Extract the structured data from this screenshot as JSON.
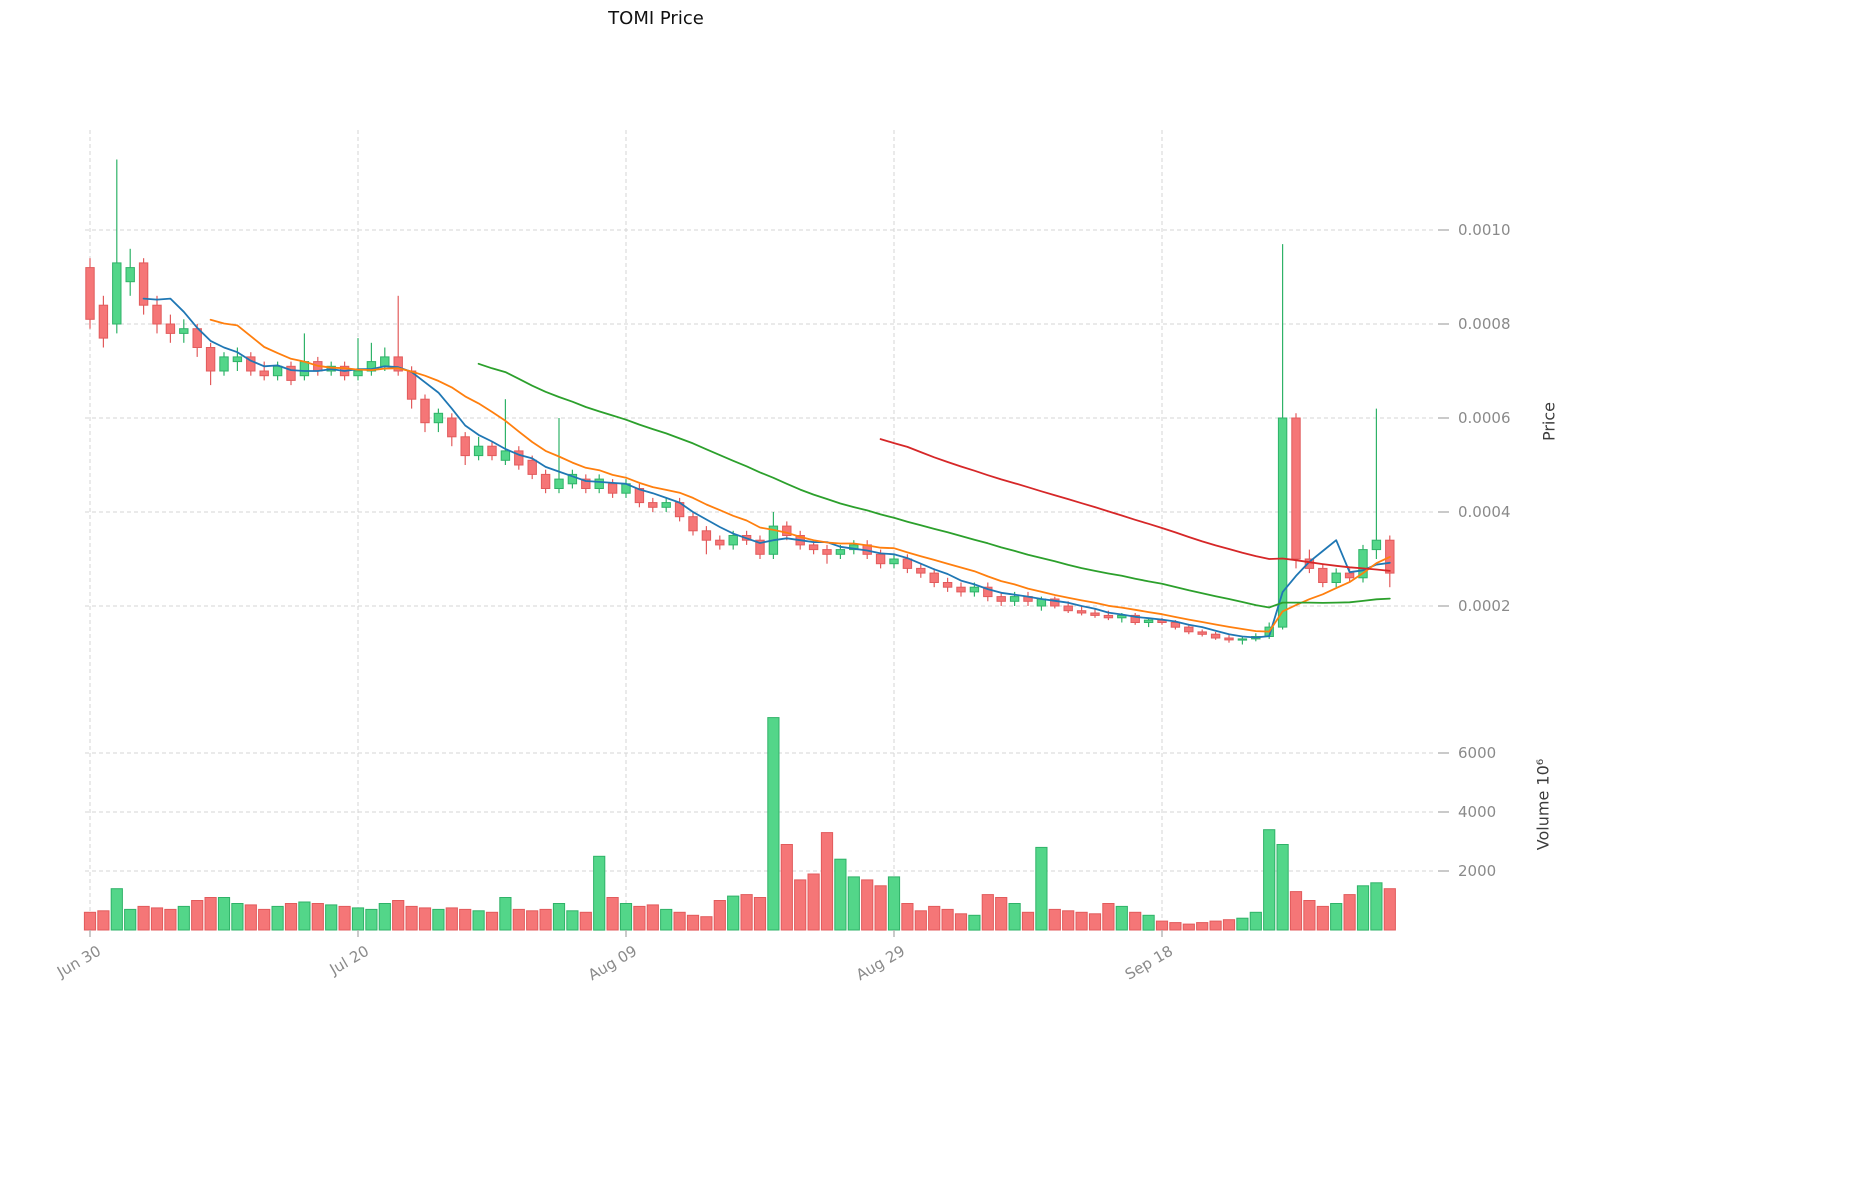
{
  "chart_data": {
    "type": "candlestick+volume",
    "title": "TOMI Price",
    "ylabel": "Price",
    "volume_label": "Volume 10⁶",
    "legend": "none",
    "grid": "dashed",
    "price_axis_side": "right",
    "price_ticks": [
      {
        "value": 0.0002,
        "label": "0.0002"
      },
      {
        "value": 0.0004,
        "label": "0.0004"
      },
      {
        "value": 0.0006,
        "label": "0.0006"
      },
      {
        "value": 0.0008,
        "label": "0.0008"
      },
      {
        "value": 0.001,
        "label": "0.0010"
      }
    ],
    "volume_ticks": [
      {
        "value": 2000,
        "label": "2000"
      },
      {
        "value": 4000,
        "label": "4000"
      },
      {
        "value": 6000,
        "label": "6000"
      }
    ],
    "x_ticks": [
      {
        "index": 0,
        "label": "Jun 30"
      },
      {
        "index": 20,
        "label": "Jul 20"
      },
      {
        "index": 40,
        "label": "Aug 09"
      },
      {
        "index": 60,
        "label": "Aug 29"
      },
      {
        "index": 80,
        "label": "Sep 18"
      }
    ],
    "moving_averages": [
      {
        "window": 5,
        "color": "#1f77b4"
      },
      {
        "window": 10,
        "color": "#ff7f0e"
      },
      {
        "window": 30,
        "color": "#2ca02c"
      },
      {
        "window": 60,
        "color": "#d62728"
      }
    ],
    "colors": {
      "up": "#53d689",
      "down": "#f57677",
      "up_edge": "#2fb268",
      "down_edge": "#e25b5c",
      "grid": "#d5d5d5"
    },
    "ohlc": [
      [
        0.00092,
        0.00094,
        0.00079,
        0.00081
      ],
      [
        0.00084,
        0.00086,
        0.00075,
        0.00077
      ],
      [
        0.0008,
        0.00115,
        0.00078,
        0.00093
      ],
      [
        0.00089,
        0.00096,
        0.00086,
        0.00092
      ],
      [
        0.00093,
        0.00094,
        0.00082,
        0.00084
      ],
      [
        0.00084,
        0.00086,
        0.00078,
        0.0008
      ],
      [
        0.0008,
        0.00082,
        0.00076,
        0.00078
      ],
      [
        0.00078,
        0.00081,
        0.00076,
        0.00079
      ],
      [
        0.00079,
        0.0008,
        0.00073,
        0.00075
      ],
      [
        0.00075,
        0.00076,
        0.00067,
        0.0007
      ],
      [
        0.0007,
        0.00074,
        0.00069,
        0.00073
      ],
      [
        0.00072,
        0.00075,
        0.0007,
        0.00073
      ],
      [
        0.00073,
        0.00074,
        0.00069,
        0.0007
      ],
      [
        0.0007,
        0.00072,
        0.00068,
        0.00069
      ],
      [
        0.00069,
        0.00072,
        0.00068,
        0.00071
      ],
      [
        0.00071,
        0.00072,
        0.00067,
        0.00068
      ],
      [
        0.00069,
        0.00078,
        0.00068,
        0.00072
      ],
      [
        0.00072,
        0.00073,
        0.00069,
        0.0007
      ],
      [
        0.0007,
        0.00072,
        0.00069,
        0.00071
      ],
      [
        0.00071,
        0.00072,
        0.00068,
        0.00069
      ],
      [
        0.00069,
        0.00077,
        0.00068,
        0.0007
      ],
      [
        0.0007,
        0.00076,
        0.00069,
        0.00072
      ],
      [
        0.00071,
        0.00075,
        0.0007,
        0.00073
      ],
      [
        0.00073,
        0.00086,
        0.00069,
        0.0007
      ],
      [
        0.0007,
        0.00071,
        0.00062,
        0.00064
      ],
      [
        0.00064,
        0.00065,
        0.00057,
        0.00059
      ],
      [
        0.00059,
        0.00062,
        0.00057,
        0.00061
      ],
      [
        0.0006,
        0.00061,
        0.00054,
        0.00056
      ],
      [
        0.00056,
        0.00057,
        0.0005,
        0.00052
      ],
      [
        0.00052,
        0.00056,
        0.00051,
        0.00054
      ],
      [
        0.00054,
        0.00055,
        0.00051,
        0.00052
      ],
      [
        0.00051,
        0.00064,
        0.0005,
        0.00053
      ],
      [
        0.00053,
        0.00054,
        0.00049,
        0.0005
      ],
      [
        0.00051,
        0.00052,
        0.00047,
        0.00048
      ],
      [
        0.00048,
        0.00049,
        0.00044,
        0.00045
      ],
      [
        0.00045,
        0.0006,
        0.00044,
        0.00047
      ],
      [
        0.00046,
        0.00049,
        0.00045,
        0.00048
      ],
      [
        0.00047,
        0.00048,
        0.00044,
        0.00045
      ],
      [
        0.00045,
        0.00048,
        0.00044,
        0.00047
      ],
      [
        0.00046,
        0.00047,
        0.00043,
        0.00044
      ],
      [
        0.00044,
        0.00047,
        0.00043,
        0.00046
      ],
      [
        0.00045,
        0.00046,
        0.00041,
        0.00042
      ],
      [
        0.00042,
        0.00043,
        0.0004,
        0.00041
      ],
      [
        0.00041,
        0.00043,
        0.0004,
        0.00042
      ],
      [
        0.00042,
        0.00043,
        0.00038,
        0.00039
      ],
      [
        0.00039,
        0.0004,
        0.00035,
        0.00036
      ],
      [
        0.00036,
        0.00037,
        0.00031,
        0.00034
      ],
      [
        0.00034,
        0.00035,
        0.00032,
        0.00033
      ],
      [
        0.00033,
        0.00036,
        0.00032,
        0.00035
      ],
      [
        0.00035,
        0.00036,
        0.00033,
        0.00034
      ],
      [
        0.00034,
        0.00035,
        0.0003,
        0.00031
      ],
      [
        0.00031,
        0.0004,
        0.0003,
        0.00037
      ],
      [
        0.00037,
        0.00038,
        0.00034,
        0.00035
      ],
      [
        0.00035,
        0.00036,
        0.00032,
        0.00033
      ],
      [
        0.00033,
        0.00034,
        0.00031,
        0.00032
      ],
      [
        0.00032,
        0.00033,
        0.00029,
        0.00031
      ],
      [
        0.00031,
        0.00033,
        0.0003,
        0.00032
      ],
      [
        0.00032,
        0.00034,
        0.00031,
        0.00033
      ],
      [
        0.00033,
        0.00034,
        0.0003,
        0.00031
      ],
      [
        0.00031,
        0.00032,
        0.00028,
        0.00029
      ],
      [
        0.00029,
        0.00031,
        0.00028,
        0.0003
      ],
      [
        0.0003,
        0.00031,
        0.00027,
        0.00028
      ],
      [
        0.00028,
        0.00029,
        0.00026,
        0.00027
      ],
      [
        0.00027,
        0.00028,
        0.00024,
        0.00025
      ],
      [
        0.00025,
        0.00026,
        0.00023,
        0.00024
      ],
      [
        0.00024,
        0.00025,
        0.00022,
        0.00023
      ],
      [
        0.00023,
        0.00025,
        0.00022,
        0.00024
      ],
      [
        0.00024,
        0.00025,
        0.00021,
        0.00022
      ],
      [
        0.00022,
        0.00023,
        0.0002,
        0.00021
      ],
      [
        0.00021,
        0.00023,
        0.0002,
        0.00022
      ],
      [
        0.00022,
        0.00023,
        0.0002,
        0.00021
      ],
      [
        0.0002,
        0.00022,
        0.00019,
        0.000215
      ],
      [
        0.000215,
        0.00022,
        0.000195,
        0.0002
      ],
      [
        0.0002,
        0.00021,
        0.000185,
        0.00019
      ],
      [
        0.00019,
        0.0002,
        0.00018,
        0.000185
      ],
      [
        0.000185,
        0.000195,
        0.000175,
        0.00018
      ],
      [
        0.00018,
        0.00019,
        0.00017,
        0.000175
      ],
      [
        0.000175,
        0.000185,
        0.000165,
        0.00018
      ],
      [
        0.00018,
        0.000185,
        0.00016,
        0.000165
      ],
      [
        0.000165,
        0.000175,
        0.000155,
        0.00017
      ],
      [
        0.00017,
        0.000175,
        0.00016,
        0.000165
      ],
      [
        0.000165,
        0.00017,
        0.00015,
        0.000155
      ],
      [
        0.000155,
        0.00016,
        0.00014,
        0.000145
      ],
      [
        0.000145,
        0.00015,
        0.000135,
        0.00014
      ],
      [
        0.00014,
        0.000145,
        0.000128,
        0.000132
      ],
      [
        0.000132,
        0.000138,
        0.000122,
        0.000128
      ],
      [
        0.000128,
        0.000135,
        0.000118,
        0.00013
      ],
      [
        0.00013,
        0.000142,
        0.000125,
        0.000135
      ],
      [
        0.000135,
        0.000165,
        0.00013,
        0.000155
      ],
      [
        0.000155,
        0.00097,
        0.00015,
        0.0006
      ],
      [
        0.0006,
        0.00061,
        0.00028,
        0.0003
      ],
      [
        0.0003,
        0.00032,
        0.00027,
        0.00028
      ],
      [
        0.00028,
        0.00029,
        0.00024,
        0.00025
      ],
      [
        0.00025,
        0.00028,
        0.00024,
        0.00027
      ],
      [
        0.00027,
        0.00028,
        0.00025,
        0.00026
      ],
      [
        0.00026,
        0.00033,
        0.00025,
        0.00032
      ],
      [
        0.00032,
        0.00062,
        0.0003,
        0.00034
      ],
      [
        0.00034,
        0.00035,
        0.00024,
        0.00027
      ]
    ],
    "volume": [
      600,
      650,
      1400,
      700,
      800,
      750,
      700,
      800,
      1000,
      1100,
      1100,
      900,
      850,
      700,
      800,
      900,
      950,
      900,
      850,
      800,
      750,
      700,
      900,
      1000,
      800,
      750,
      700,
      750,
      700,
      650,
      600,
      1100,
      700,
      650,
      700,
      900,
      650,
      600,
      2500,
      1100,
      900,
      800,
      850,
      700,
      600,
      500,
      450,
      1000,
      1150,
      1200,
      1100,
      7200,
      2900,
      1700,
      1900,
      3300,
      2400,
      1800,
      1700,
      1500,
      1800,
      900,
      650,
      800,
      700,
      550,
      500,
      1200,
      1100,
      900,
      600,
      2800,
      700,
      650,
      600,
      550,
      900,
      800,
      600,
      500,
      300,
      250,
      200,
      250,
      300,
      350,
      400,
      600,
      3400,
      2900,
      1300,
      1000,
      800,
      900,
      1200,
      1500,
      1600,
      1400
    ]
  }
}
